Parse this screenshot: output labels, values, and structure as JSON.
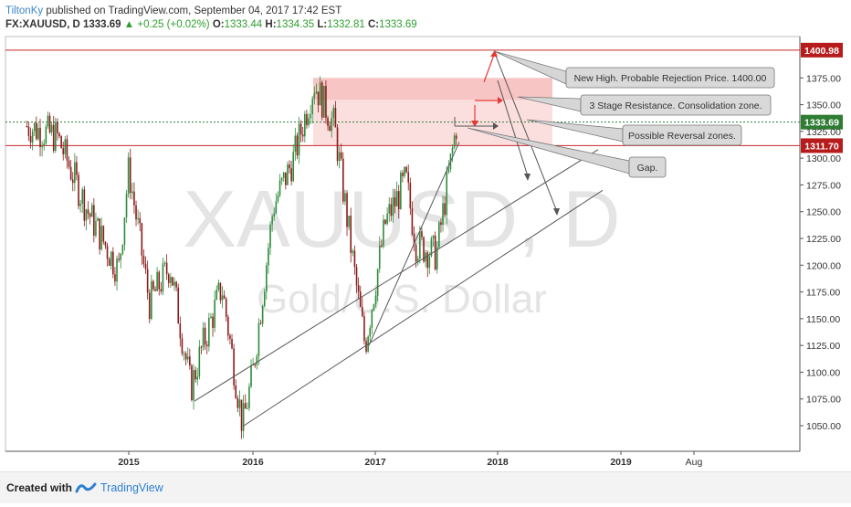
{
  "header": {
    "user": "TiltonKy",
    "published": "published on TradingView.com, September 04, 2017 17:42 EST"
  },
  "ohlc": {
    "symbol": "FX:XAUUSD, D",
    "last": "1333.69",
    "change": "+0.25 (+0.02%)",
    "o_label": "O:",
    "o": "1333.44",
    "h_label": "H:",
    "h": "1334.35",
    "l_label": "L:",
    "l": "1332.81",
    "c_label": "C:",
    "c": "1333.69"
  },
  "watermark": {
    "symbol": "XAUUSD, D",
    "name": "Gold/U.S. Dollar"
  },
  "price_tags": [
    {
      "label": "1400.98",
      "value": 1400.98,
      "color": "#b71c1c"
    },
    {
      "label": "1333.69",
      "value": 1333.69,
      "color": "#2e7d32"
    },
    {
      "label": "1311.70",
      "value": 1311.7,
      "color": "#b71c1c"
    }
  ],
  "annotations": [
    {
      "text": "New High. Probable Rejection Price. 1400.00"
    },
    {
      "text": "3 Stage Resistance. Consolidation zone."
    },
    {
      "text": "Possible Reversal zones."
    },
    {
      "text": "Gap."
    }
  ],
  "footer": {
    "created": "Created with",
    "brand": "TradingView"
  },
  "chart_data": {
    "type": "line",
    "title": "",
    "xlabel": "",
    "ylabel": "",
    "x_ticks": [
      "2015",
      "2016",
      "2017",
      "2018",
      "2019",
      "Aug"
    ],
    "y_ticks": [
      1050,
      1075,
      1100,
      1125,
      1150,
      1175,
      1200,
      1225,
      1250,
      1275,
      1300,
      1325,
      1350,
      1375
    ],
    "ylim": [
      1030,
      1410
    ],
    "x": [
      "2014-03",
      "2014-06",
      "2014-09",
      "2014-12",
      "2015-01",
      "2015-03",
      "2015-05",
      "2015-07",
      "2015-08",
      "2015-10",
      "2015-12",
      "2016-01",
      "2016-03",
      "2016-05",
      "2016-07",
      "2016-09",
      "2016-11",
      "2016-12",
      "2017-02",
      "2017-04",
      "2017-05",
      "2017-07",
      "2017-09"
    ],
    "series": [
      {
        "values": [
          1330,
          1320,
          1250,
          1195,
          1290,
          1165,
          1200,
          1085,
          1120,
          1180,
          1050,
          1100,
          1255,
          1300,
          1370,
          1330,
          1190,
          1125,
          1240,
          1280,
          1220,
          1210,
          1333.69
        ]
      }
    ],
    "resistance_zone": [
      1311.7,
      1375
    ],
    "levels": [
      1400.98,
      1333.69,
      1311.7
    ],
    "grid": true
  }
}
